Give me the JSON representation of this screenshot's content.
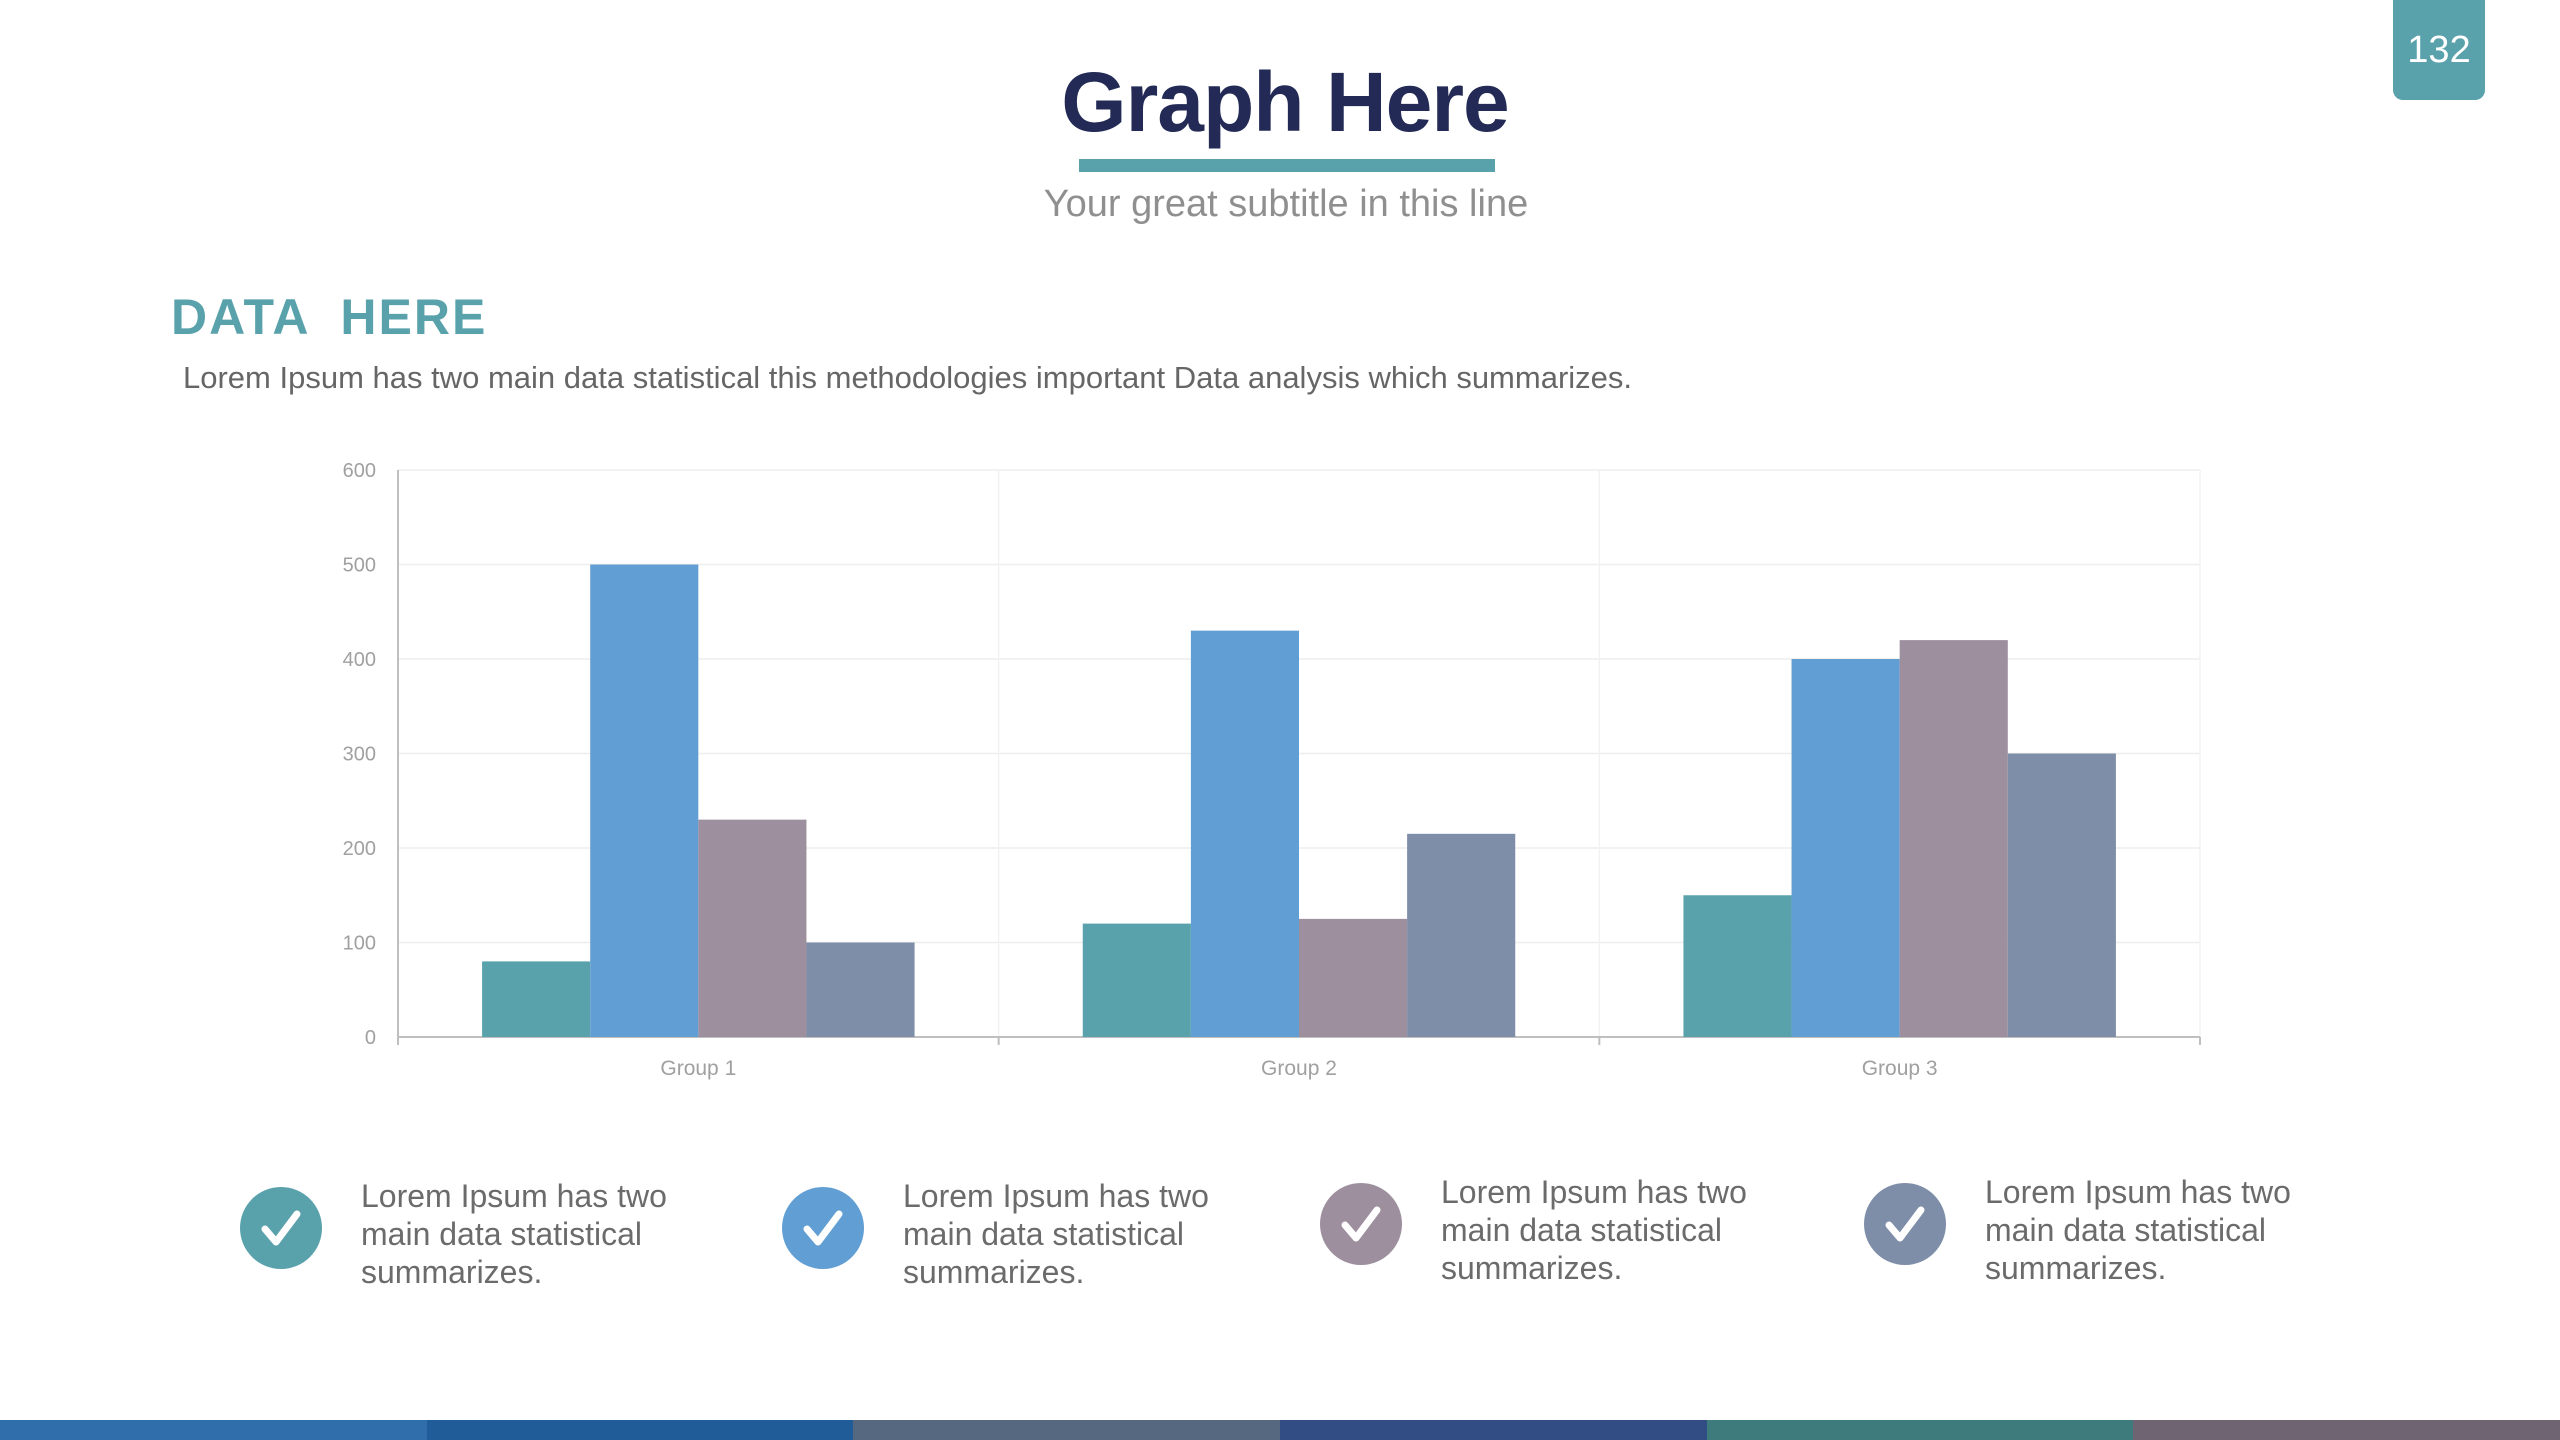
{
  "slide": {
    "page_number": "132",
    "title": "Graph Here",
    "subtitle": "Your great subtitle in this line",
    "section_heading": "DATA  HERE",
    "section_body": "Lorem Ipsum has two main data statistical this methodologies important Data analysis which summarizes."
  },
  "colors": {
    "accent": "#5aa2ab",
    "title": "#222a55",
    "series": [
      "#5aa2ab",
      "#619ed3",
      "#9e8f9f",
      "#7e8da8"
    ],
    "footer": [
      "#2f6eaa",
      "#1f5c98",
      "#56687f",
      "#324c84",
      "#3e7b7d",
      "#6e6472"
    ]
  },
  "chart_data": {
    "type": "bar",
    "categories": [
      "Group 1",
      "Group 2",
      "Group 3"
    ],
    "series": [
      {
        "values": [
          80,
          120,
          150
        ]
      },
      {
        "values": [
          500,
          430,
          400
        ]
      },
      {
        "values": [
          230,
          125,
          420
        ]
      },
      {
        "values": [
          100,
          215,
          300
        ]
      }
    ],
    "ylim": [
      0,
      600
    ],
    "yticks": [
      "0",
      "100",
      "200",
      "300",
      "400",
      "500",
      "600"
    ],
    "grid": true,
    "title": "",
    "xlabel": "",
    "ylabel": ""
  },
  "legend": [
    {
      "text": "Lorem Ipsum has two main data statistical summarizes.",
      "icon": "check-circle-icon",
      "color": "#5aa2ab"
    },
    {
      "text": "Lorem Ipsum has two main data statistical summarizes.",
      "icon": "check-circle-icon",
      "color": "#619ed3"
    },
    {
      "text": "Lorem Ipsum has two main data statistical summarizes.",
      "icon": "check-circle-icon",
      "color": "#9e8f9f"
    },
    {
      "text": "Lorem Ipsum has two main data statistical summarizes.",
      "icon": "check-circle-icon",
      "color": "#7e8da8"
    }
  ]
}
